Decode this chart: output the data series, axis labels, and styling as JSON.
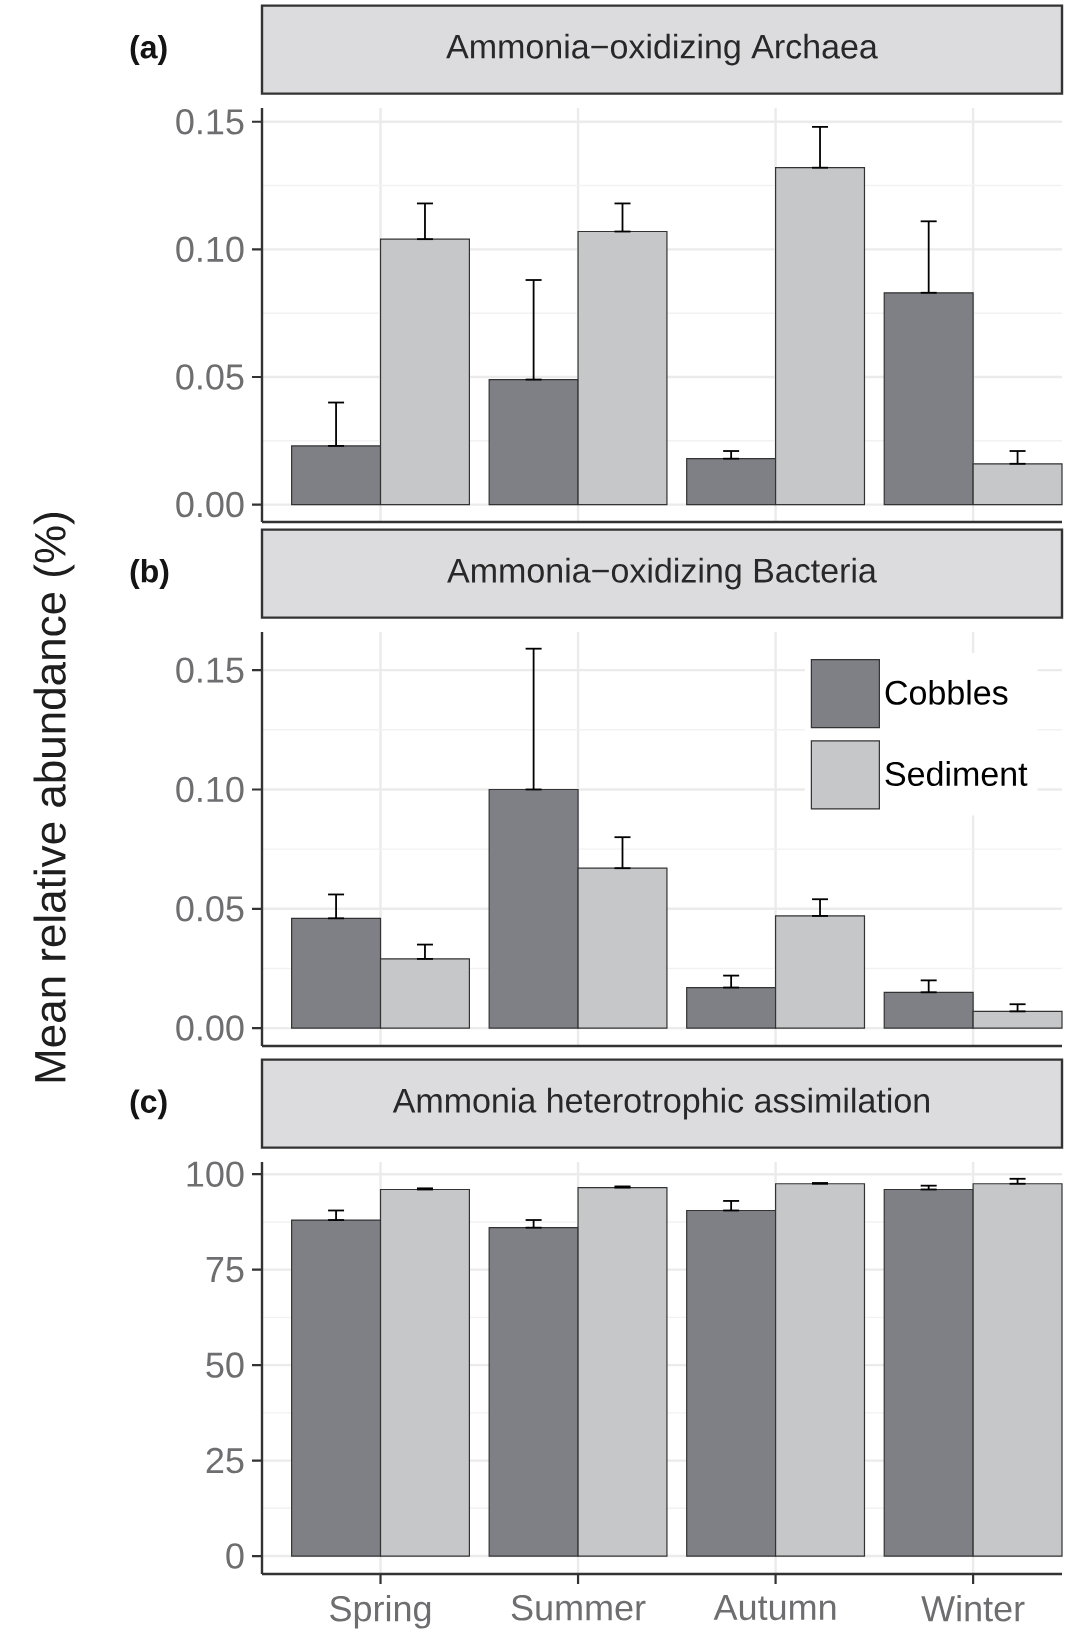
{
  "chart_data": [
    {
      "type": "bar",
      "title": "Ammonia−oxidizing Archaea",
      "annotations": [
        "(a)"
      ],
      "categories": [
        null,
        null,
        null,
        null
      ],
      "series": [
        {
          "color": "#7f8085",
          "values": [
            0.023,
            0.049,
            0.018,
            0.083
          ],
          "errors": [
            [
              0.023,
              0.04
            ],
            [
              0.049,
              0.088
            ],
            [
              0.018,
              0.021
            ],
            [
              0.083,
              0.111
            ]
          ]
        },
        {
          "color": "#c6c7c9",
          "values": [
            0.104,
            0.107,
            0.132,
            0.016
          ],
          "errors": [
            [
              0.104,
              0.118
            ],
            [
              0.107,
              0.118
            ],
            [
              0.132,
              0.148
            ],
            [
              0.016,
              0.021
            ]
          ]
        }
      ],
      "ylim": [
        -0.0068,
        0.1554
      ],
      "yticks": [
        {
          "value": 0,
          "label": "0.00"
        },
        {
          "value": 0.05,
          "label": "0.05"
        },
        {
          "value": 0.1,
          "label": "0.10"
        },
        {
          "value": 0.15,
          "label": "0.15"
        }
      ],
      "grid": true,
      "tick_labels": "y"
    },
    {
      "type": "bar",
      "title": "Ammonia−oxidizing Bacteria",
      "ylabel": "Mean relative abundance (%)",
      "annotations": [
        "(b)"
      ],
      "categories": [
        null,
        null,
        null,
        null
      ],
      "series": [
        {
          "name": "Cobbles",
          "color": "#7f8085",
          "values": [
            0.046,
            0.1,
            0.017,
            0.015
          ],
          "errors": [
            [
              0.046,
              0.056
            ],
            [
              0.1,
              0.159
            ],
            [
              0.017,
              0.022
            ],
            [
              0.015,
              0.02
            ]
          ]
        },
        {
          "name": "Sediment",
          "color": "#c6c7c9",
          "values": [
            0.029,
            0.067,
            0.047,
            0.007
          ],
          "errors": [
            [
              0.029,
              0.035
            ],
            [
              0.067,
              0.08
            ],
            [
              0.047,
              0.054
            ],
            [
              0.007,
              0.01
            ]
          ]
        }
      ],
      "ylim": [
        -0.0075,
        0.166
      ],
      "yticks": [
        {
          "value": 0,
          "label": "0.00"
        },
        {
          "value": 0.05,
          "label": "0.05"
        },
        {
          "value": 0.1,
          "label": "0.10"
        },
        {
          "value": 0.15,
          "label": "0.15"
        }
      ],
      "grid": true,
      "legend": "top right",
      "tick_labels": "y"
    },
    {
      "type": "bar",
      "title": "Ammonia heterotrophic assimilation",
      "annotations": [
        "(c)"
      ],
      "categories": [
        "Spring",
        "Summer",
        "Autumn",
        "Winter"
      ],
      "series": [
        {
          "color": "#7f8085",
          "values": [
            88,
            86,
            90.5,
            96
          ],
          "errors": [
            [
              88,
              90.5
            ],
            [
              86,
              88
            ],
            [
              90.5,
              93
            ],
            [
              96,
              97
            ]
          ]
        },
        {
          "color": "#c6c7c9",
          "values": [
            96,
            96.5,
            97.5,
            97.5
          ],
          "errors": [
            [
              96,
              96.3
            ],
            [
              96.5,
              96.8
            ],
            [
              97.5,
              97.7
            ],
            [
              97.5,
              98.8
            ]
          ]
        }
      ],
      "ylim": [
        -4.7,
        103.2
      ],
      "yticks": [
        0,
        25,
        50,
        75,
        100
      ],
      "grid": true
    }
  ]
}
